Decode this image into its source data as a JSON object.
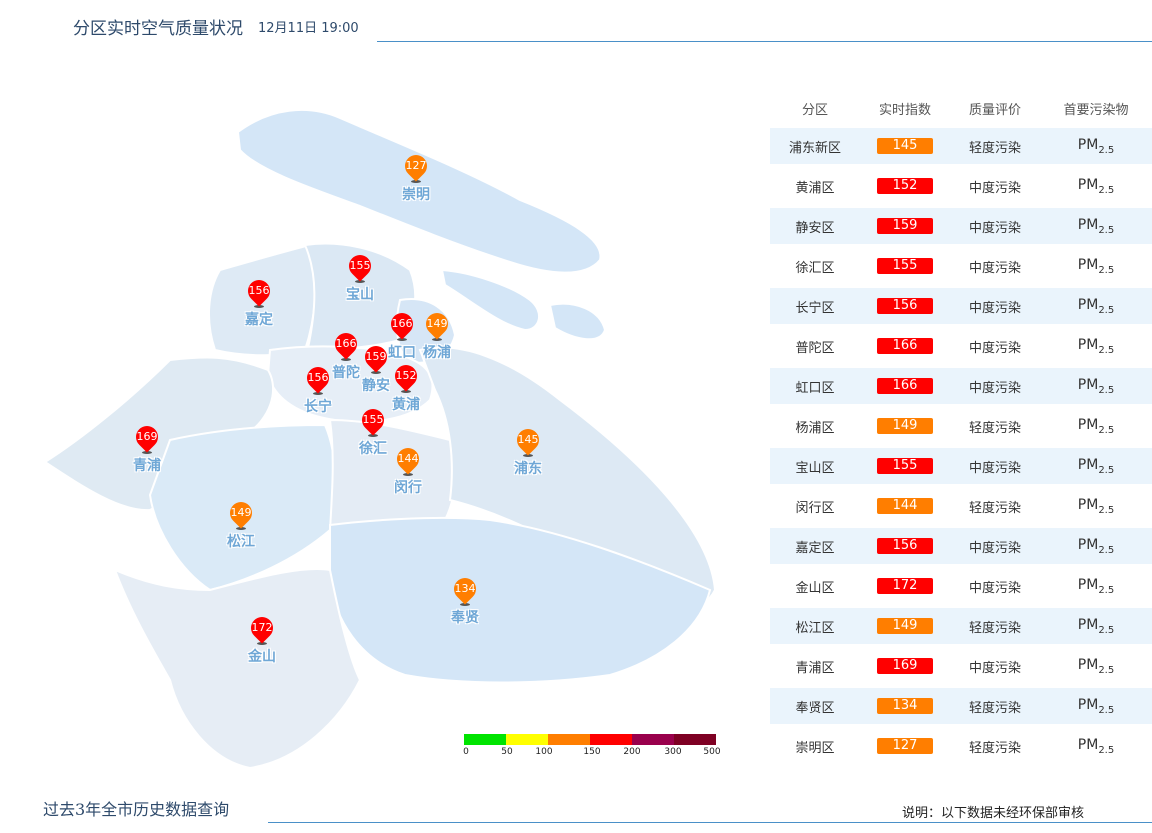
{
  "header": {
    "title": "分区实时空气质量状况",
    "timestamp": "12月11日 19:00"
  },
  "table": {
    "headers": [
      "分区",
      "实时指数",
      "质量评价",
      "首要污染物"
    ],
    "rows": [
      {
        "district": "浦东新区",
        "aqi": "145",
        "level": "轻度污染",
        "color": "#ff7e00",
        "pollutant": "PM",
        "sub": "2.5"
      },
      {
        "district": "黄浦区",
        "aqi": "152",
        "level": "中度污染",
        "color": "#ff0000",
        "pollutant": "PM",
        "sub": "2.5"
      },
      {
        "district": "静安区",
        "aqi": "159",
        "level": "中度污染",
        "color": "#ff0000",
        "pollutant": "PM",
        "sub": "2.5"
      },
      {
        "district": "徐汇区",
        "aqi": "155",
        "level": "中度污染",
        "color": "#ff0000",
        "pollutant": "PM",
        "sub": "2.5"
      },
      {
        "district": "长宁区",
        "aqi": "156",
        "level": "中度污染",
        "color": "#ff0000",
        "pollutant": "PM",
        "sub": "2.5"
      },
      {
        "district": "普陀区",
        "aqi": "166",
        "level": "中度污染",
        "color": "#ff0000",
        "pollutant": "PM",
        "sub": "2.5"
      },
      {
        "district": "虹口区",
        "aqi": "166",
        "level": "中度污染",
        "color": "#ff0000",
        "pollutant": "PM",
        "sub": "2.5"
      },
      {
        "district": "杨浦区",
        "aqi": "149",
        "level": "轻度污染",
        "color": "#ff7e00",
        "pollutant": "PM",
        "sub": "2.5"
      },
      {
        "district": "宝山区",
        "aqi": "155",
        "level": "中度污染",
        "color": "#ff0000",
        "pollutant": "PM",
        "sub": "2.5"
      },
      {
        "district": "闵行区",
        "aqi": "144",
        "level": "轻度污染",
        "color": "#ff7e00",
        "pollutant": "PM",
        "sub": "2.5"
      },
      {
        "district": "嘉定区",
        "aqi": "156",
        "level": "中度污染",
        "color": "#ff0000",
        "pollutant": "PM",
        "sub": "2.5"
      },
      {
        "district": "金山区",
        "aqi": "172",
        "level": "中度污染",
        "color": "#ff0000",
        "pollutant": "PM",
        "sub": "2.5"
      },
      {
        "district": "松江区",
        "aqi": "149",
        "level": "轻度污染",
        "color": "#ff7e00",
        "pollutant": "PM",
        "sub": "2.5"
      },
      {
        "district": "青浦区",
        "aqi": "169",
        "level": "中度污染",
        "color": "#ff0000",
        "pollutant": "PM",
        "sub": "2.5"
      },
      {
        "district": "奉贤区",
        "aqi": "134",
        "level": "轻度污染",
        "color": "#ff7e00",
        "pollutant": "PM",
        "sub": "2.5"
      },
      {
        "district": "崇明区",
        "aqi": "127",
        "level": "轻度污染",
        "color": "#ff7e00",
        "pollutant": "PM",
        "sub": "2.5"
      }
    ]
  },
  "map": {
    "markers": [
      {
        "name": "崇明",
        "value": "127",
        "color": "#ff7e00"
      },
      {
        "name": "宝山",
        "value": "155",
        "color": "#ff0000"
      },
      {
        "name": "嘉定",
        "value": "156",
        "color": "#ff0000"
      },
      {
        "name": "虹口",
        "value": "166",
        "color": "#ff0000"
      },
      {
        "name": "杨浦",
        "value": "149",
        "color": "#ff7e00"
      },
      {
        "name": "普陀",
        "value": "166",
        "color": "#ff0000"
      },
      {
        "name": "静安",
        "value": "159",
        "color": "#ff0000"
      },
      {
        "name": "黄浦",
        "value": "152",
        "color": "#ff0000"
      },
      {
        "name": "长宁",
        "value": "156",
        "color": "#ff0000"
      },
      {
        "name": "徐汇",
        "value": "155",
        "color": "#ff0000"
      },
      {
        "name": "青浦",
        "value": "169",
        "color": "#ff0000"
      },
      {
        "name": "浦东",
        "value": "145",
        "color": "#ff7e00"
      },
      {
        "name": "闵行",
        "value": "144",
        "color": "#ff7e00"
      },
      {
        "name": "松江",
        "value": "149",
        "color": "#ff7e00"
      },
      {
        "name": "奉贤",
        "value": "134",
        "color": "#ff7e00"
      },
      {
        "name": "金山",
        "value": "172",
        "color": "#ff0000"
      }
    ],
    "legend": {
      "colors": [
        "#00e400",
        "#ffff00",
        "#ff7e00",
        "#ff0000",
        "#99004c",
        "#7e0023"
      ],
      "ticks": [
        "0",
        "50",
        "100",
        "150",
        "200",
        "300",
        "500"
      ]
    }
  },
  "footer": {
    "history_link": "过去3年全市历史数据查询",
    "note": "说明：以下数据未经环保部审核"
  }
}
